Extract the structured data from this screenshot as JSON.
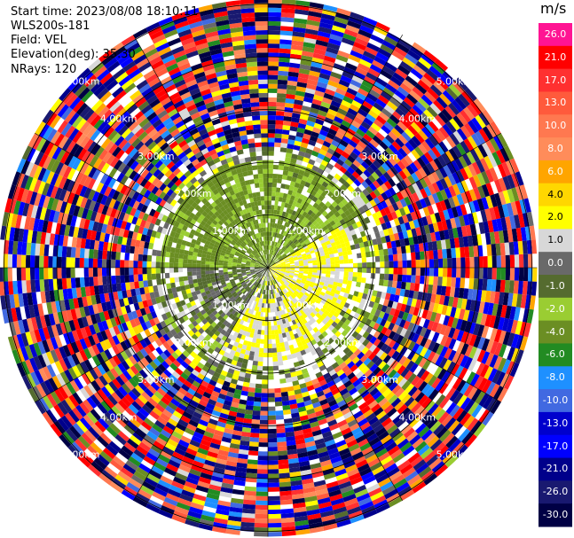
{
  "header": {
    "start_time": "Start time: 2023/08/08 18:10:11",
    "instrument": "WLS200s-181",
    "field": "Field: VEL",
    "elevation": "Elevation(deg): 35.30",
    "nrays": "NRays: 120"
  },
  "colorbar": {
    "unit": "m/s",
    "ticks": [
      "26.0",
      "21.0",
      "17.0",
      "13.0",
      "10.0",
      "8.0",
      "6.0",
      "4.0",
      "2.0",
      "1.0",
      "0.0",
      "-1.0",
      "-2.0",
      "-4.0",
      "-6.0",
      "-8.0",
      "-10.0",
      "-13.0",
      "-17.0",
      "-21.0",
      "-26.0",
      "-30.0"
    ],
    "colors": [
      "#ff1493",
      "#ff0000",
      "#ff3030",
      "#ff5a3c",
      "#ff7850",
      "#ff8c5a",
      "#ffa500",
      "#ffd700",
      "#ffff00",
      "#d8d8d8",
      "#696969",
      "#556b2f",
      "#9acd32",
      "#6b8e23",
      "#228b22",
      "#1e90ff",
      "#4169e1",
      "#0000cd",
      "#0000ff",
      "#00008b",
      "#191970",
      "#000044"
    ]
  },
  "chart_data": {
    "type": "heatmap",
    "title": "",
    "projection": "polar (PPI)",
    "field": "VEL",
    "unit": "m/s",
    "nrays": 120,
    "range_rings_km": [
      1.0,
      2.0,
      3.0,
      4.0,
      5.0
    ],
    "ring_labels": [
      "1.00km",
      "2.00km",
      "3.00km",
      "4.00km",
      "5.00km"
    ],
    "max_range_km": 5.1,
    "value_range": [
      -30.0,
      26.0
    ],
    "description_regions": [
      {
        "sector_deg": [
          60,
          150
        ],
        "range_km": [
          0,
          1.6
        ],
        "dominant_value_ms": 2.5
      },
      {
        "sector_deg": [
          150,
          210
        ],
        "range_km": [
          0.6,
          1.8
        ],
        "dominant_value_ms": 2.0
      },
      {
        "sector_deg": [
          210,
          270
        ],
        "range_km": [
          0,
          1.5
        ],
        "dominant_value_ms": 0.0
      },
      {
        "sector_deg": [
          270,
          360
        ],
        "range_km": [
          0,
          2.0
        ],
        "dominant_value_ms": -2.5
      },
      {
        "sector_deg": [
          0,
          60
        ],
        "range_km": [
          0,
          2.0
        ],
        "dominant_value_ms": -2.0
      }
    ],
    "noise_beyond_km": 2.3
  }
}
